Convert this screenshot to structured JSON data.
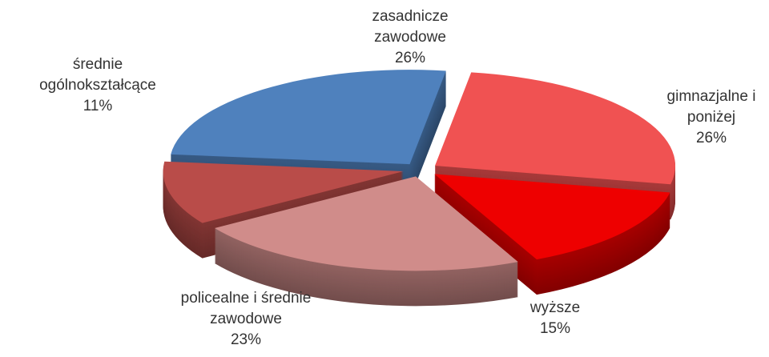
{
  "chart_data": {
    "type": "pie",
    "three_d": true,
    "exploded": true,
    "categories": [
      "zasadnicze zawodowe",
      "gimnazjalne i poniżej",
      "wyższe",
      "policealne i średnie zawodowe",
      "średnie ogólnokształcące"
    ],
    "values": [
      26,
      26,
      15,
      23,
      11
    ],
    "value_labels": [
      "26%",
      "26%",
      "15%",
      "23%",
      "11%"
    ],
    "colors": [
      "#4f81bd",
      "#f05252",
      "#ee0000",
      "#d08c8a",
      "#b94c49"
    ]
  }
}
